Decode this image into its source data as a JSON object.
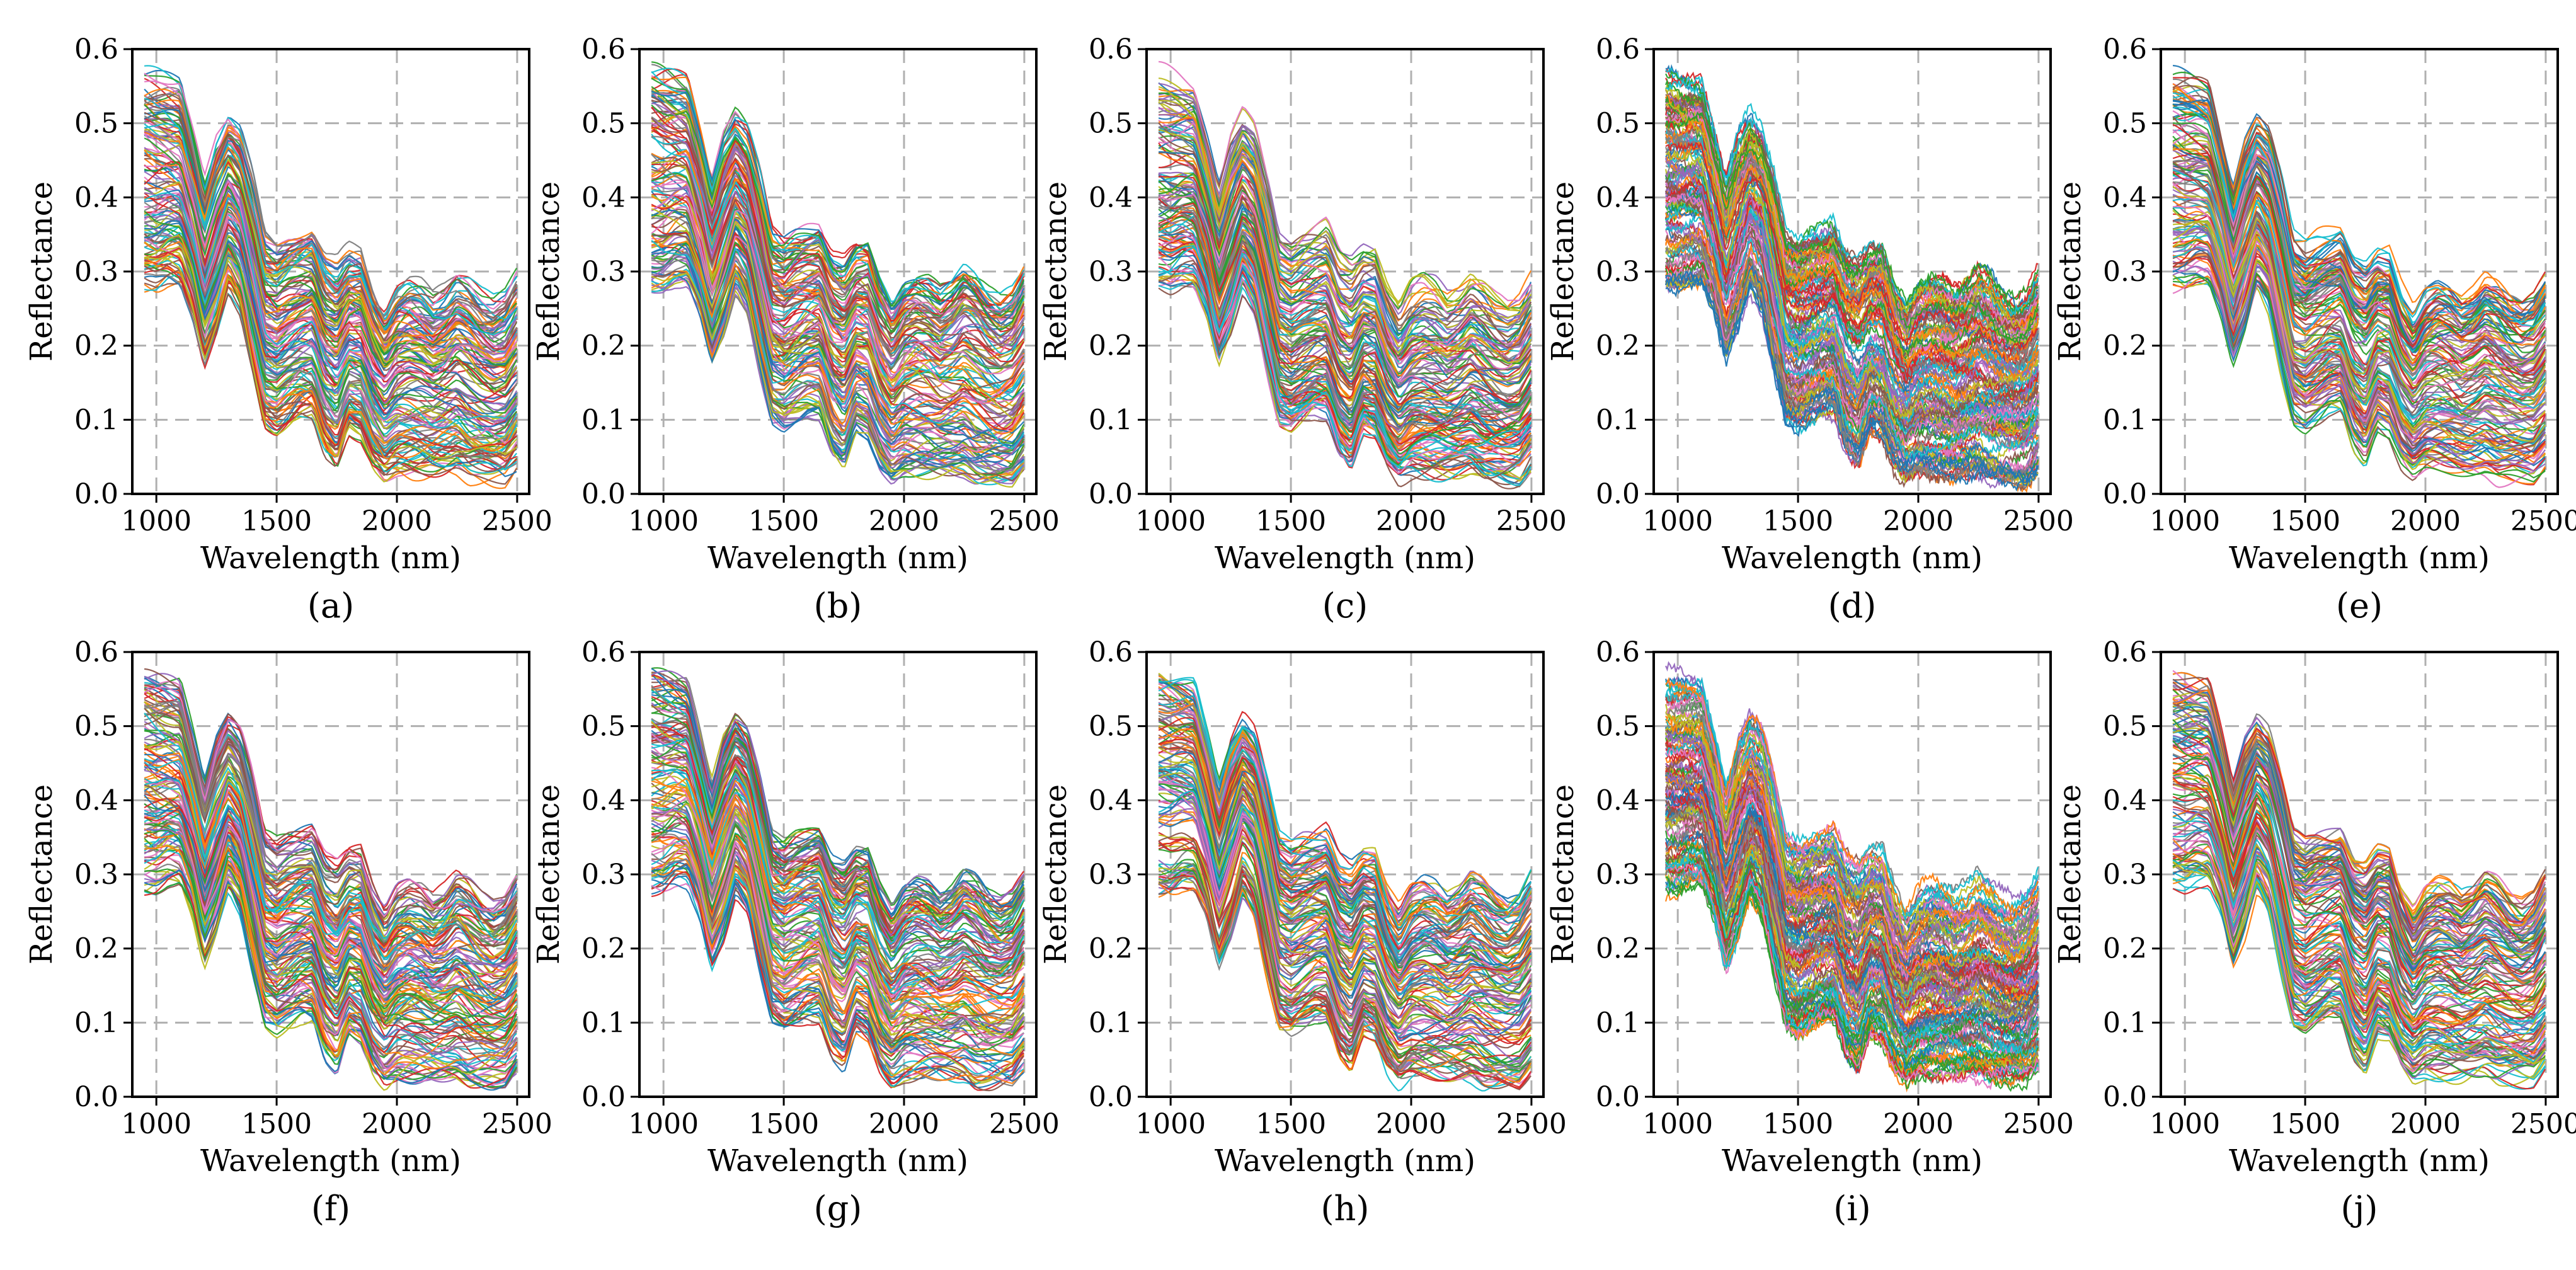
{
  "figure": {
    "panels": [
      {
        "label": "(a)",
        "variant": 0
      },
      {
        "label": "(b)",
        "variant": 1
      },
      {
        "label": "(c)",
        "variant": 2
      },
      {
        "label": "(d)",
        "variant": 3
      },
      {
        "label": "(e)",
        "variant": 4
      },
      {
        "label": "(f)",
        "variant": 5
      },
      {
        "label": "(g)",
        "variant": 6
      },
      {
        "label": "(h)",
        "variant": 7
      },
      {
        "label": "(i)",
        "variant": 8
      },
      {
        "label": "(j)",
        "variant": 9
      }
    ]
  },
  "chart_data": {
    "type": "line",
    "xlabel": "Wavelength (nm)",
    "ylabel": "Reflectance",
    "xlim": [
      900,
      2550
    ],
    "ylim": [
      0.0,
      0.6
    ],
    "xticks": [
      1000,
      1500,
      2000,
      2500
    ],
    "yticks": [
      0.0,
      0.1,
      0.2,
      0.3,
      0.4,
      0.5,
      0.6
    ],
    "grid": true,
    "grid_style": "dashed",
    "legend": "none",
    "representative_spectrum": {
      "x": [
        950,
        1000,
        1050,
        1100,
        1150,
        1200,
        1250,
        1300,
        1350,
        1400,
        1450,
        1500,
        1550,
        1600,
        1650,
        1700,
        1750,
        1800,
        1850,
        1900,
        1950,
        2000,
        2050,
        2100,
        2150,
        2200,
        2250,
        2300,
        2350,
        2400,
        2450,
        2500
      ],
      "y": [
        0.44,
        0.43,
        0.44,
        0.435,
        0.38,
        0.3,
        0.35,
        0.4,
        0.38,
        0.32,
        0.24,
        0.23,
        0.235,
        0.24,
        0.245,
        0.2,
        0.15,
        0.2,
        0.2,
        0.14,
        0.09,
        0.12,
        0.125,
        0.12,
        0.11,
        0.11,
        0.14,
        0.12,
        0.11,
        0.1,
        0.1,
        0.13
      ]
    },
    "envelope": {
      "upper": [
        0.57,
        0.565,
        0.56,
        0.555,
        0.49,
        0.42,
        0.48,
        0.51,
        0.49,
        0.43,
        0.35,
        0.34,
        0.35,
        0.355,
        0.36,
        0.32,
        0.31,
        0.33,
        0.33,
        0.28,
        0.25,
        0.28,
        0.29,
        0.285,
        0.27,
        0.28,
        0.3,
        0.29,
        0.27,
        0.26,
        0.27,
        0.3
      ],
      "lower": [
        0.28,
        0.28,
        0.29,
        0.29,
        0.25,
        0.18,
        0.22,
        0.28,
        0.25,
        0.17,
        0.1,
        0.09,
        0.1,
        0.11,
        0.11,
        0.06,
        0.04,
        0.09,
        0.08,
        0.04,
        0.02,
        0.03,
        0.03,
        0.03,
        0.03,
        0.03,
        0.03,
        0.02,
        0.02,
        0.02,
        0.02,
        0.04
      ]
    },
    "panel_count": 10,
    "layout": "2 rows x 5 columns",
    "series_colors": [
      "#1f77b4",
      "#ff7f0e",
      "#2ca02c",
      "#d62728",
      "#9467bd",
      "#8c564b",
      "#e377c2",
      "#7f7f7f",
      "#bcbd22",
      "#17becf"
    ],
    "lines_per_panel": 140
  }
}
